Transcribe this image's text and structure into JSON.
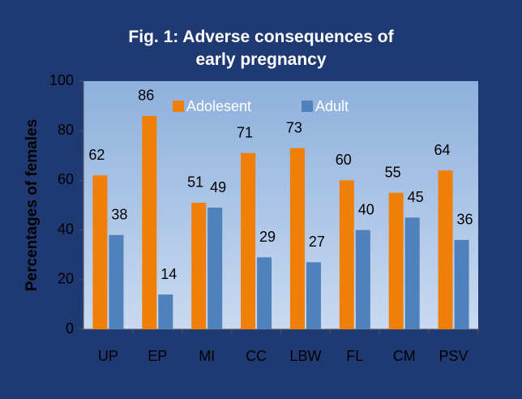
{
  "chart_data": {
    "type": "bar",
    "title": "Fig. 1: Adverse consequences of early pregnancy",
    "ylabel": "Percentages of females",
    "categories": [
      "UP",
      "EP",
      "MI",
      "CC",
      "LBW",
      "FL",
      "CM",
      "PSV"
    ],
    "series": [
      {
        "name": "Adolesent",
        "color": "#f07f09",
        "values": [
          62,
          86,
          51,
          71,
          73,
          60,
          55,
          64
        ]
      },
      {
        "name": "Adult",
        "color": "#4f81bd",
        "values": [
          38,
          14,
          49,
          29,
          27,
          40,
          45,
          36
        ]
      }
    ],
    "ylim": [
      0,
      100
    ],
    "yticks": [
      0,
      20,
      40,
      60,
      80,
      100
    ],
    "legend": "top"
  }
}
